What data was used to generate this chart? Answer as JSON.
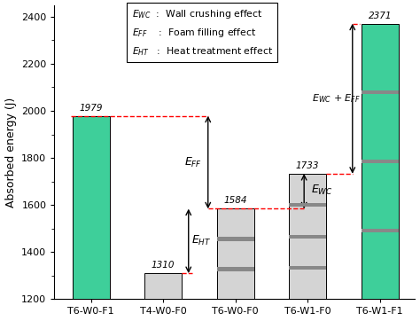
{
  "categories": [
    "T6-W0-F1",
    "T4-W0-F0",
    "T6-W0-F0",
    "T6-W1-F0",
    "T6-W1-F1"
  ],
  "values": [
    1979,
    1310,
    1584,
    1733,
    2371
  ],
  "bar_colors": [
    "#3ecf9a",
    "#d4d4d4",
    "#d4d4d4",
    "#d4d4d4",
    "#3ecf9a"
  ],
  "ylim": [
    1200,
    2450
  ],
  "yticks": [
    1200,
    1400,
    1600,
    1800,
    2000,
    2200,
    2400
  ],
  "ylabel": "Absorbed energy (J)",
  "stripe_color": "#888888",
  "bar_width": 0.52,
  "figsize": [
    4.74,
    3.62
  ],
  "dpi": 100
}
